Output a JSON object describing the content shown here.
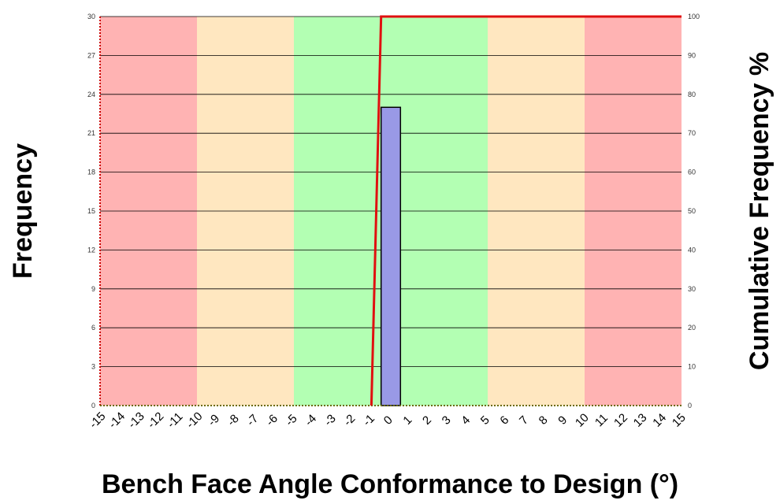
{
  "chart_data": {
    "type": "bar",
    "xlabel": "Bench Face Angle Conformance to Design (°)",
    "ylabel": "Frequency",
    "y2label": "Cumulative Frequency %",
    "xlim": [
      -15,
      15
    ],
    "ylim": [
      0,
      30
    ],
    "y2lim": [
      0,
      100
    ],
    "x_ticks": [
      -15,
      -14,
      -13,
      -12,
      -11,
      -10,
      -9,
      -8,
      -7,
      -6,
      -5,
      -4,
      -3,
      -2,
      -1,
      0,
      1,
      2,
      3,
      4,
      5,
      6,
      7,
      8,
      9,
      10,
      11,
      12,
      13,
      14,
      15
    ],
    "y_ticks": [
      0,
      3,
      6,
      9,
      12,
      15,
      18,
      21,
      24,
      27,
      30
    ],
    "y2_ticks": [
      0,
      10,
      20,
      30,
      40,
      50,
      60,
      70,
      80,
      90,
      100
    ],
    "grid": true,
    "background_bands": [
      {
        "from": -15,
        "to": -10,
        "color": "#ffb3b3"
      },
      {
        "from": -10,
        "to": -5,
        "color": "#ffe7c0"
      },
      {
        "from": -5,
        "to": 5,
        "color": "#b3ffb3"
      },
      {
        "from": 5,
        "to": 10,
        "color": "#ffe7c0"
      },
      {
        "from": 10,
        "to": 15,
        "color": "#ffb3b3"
      }
    ],
    "series": [
      {
        "type": "bar",
        "axis": "left",
        "bars": [
          {
            "from": -0.5,
            "to": 0.5,
            "value": 23
          }
        ],
        "fill": "#9999e6",
        "stroke": "#000000"
      },
      {
        "type": "line",
        "axis": "right",
        "x": [
          -1,
          -0.5,
          15
        ],
        "y": [
          0,
          100,
          100
        ],
        "color": "#e01010"
      }
    ]
  }
}
